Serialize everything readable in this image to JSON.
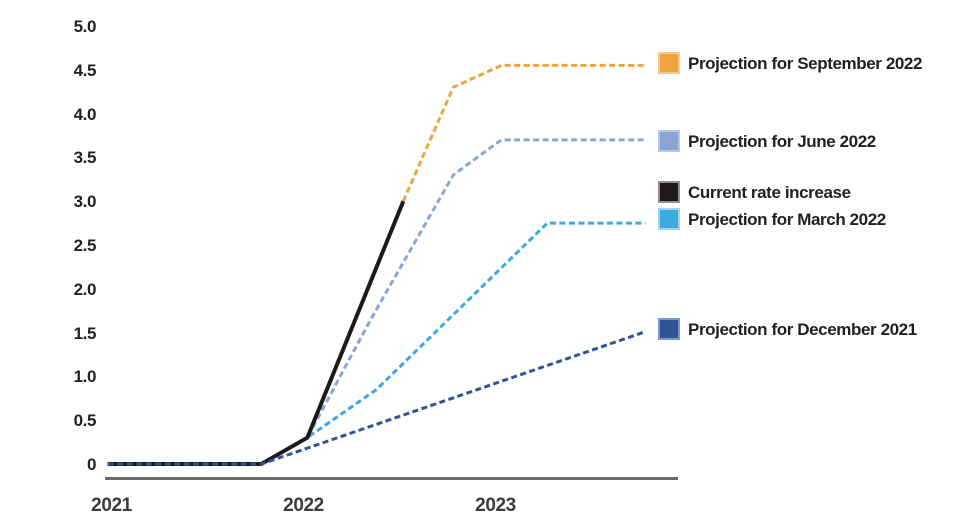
{
  "chart_data": {
    "type": "line",
    "title": "",
    "xlabel": "",
    "ylabel": "",
    "grid": false,
    "legend_position": "right",
    "background_color": "#FFFFFF",
    "axis_color": "#6B6B6B",
    "text_color": "#231F20",
    "x_axis": {
      "range": [
        2020.95,
        2023.95
      ],
      "ticks": [
        {
          "value": 2021,
          "label": "2021"
        },
        {
          "value": 2022,
          "label": "2022"
        },
        {
          "value": 2023,
          "label": "2023"
        }
      ]
    },
    "y_axis": {
      "range": [
        0,
        5.0
      ],
      "ticks": [
        {
          "value": 5.0,
          "label": "5.0"
        },
        {
          "value": 4.5,
          "label": "4.5"
        },
        {
          "value": 4.0,
          "label": "4.0"
        },
        {
          "value": 3.5,
          "label": "3.5"
        },
        {
          "value": 3.0,
          "label": "3.0"
        },
        {
          "value": 2.5,
          "label": "2.5"
        },
        {
          "value": 2.0,
          "label": "2.0"
        },
        {
          "value": 1.5,
          "label": "1.5"
        },
        {
          "value": 1.0,
          "label": "1.0"
        },
        {
          "value": 0.5,
          "label": "0.5"
        },
        {
          "value": 0,
          "label": "0"
        }
      ]
    },
    "series": [
      {
        "id": "september",
        "name": "Projection for September 2022",
        "color": "#F2A43C",
        "swatch_border": "#F7CB8F",
        "style": "dashed",
        "points": [
          [
            2022.52,
            3.0
          ],
          [
            2022.78,
            4.3
          ],
          [
            2023.03,
            4.55
          ],
          [
            2023.78,
            4.55
          ]
        ]
      },
      {
        "id": "june",
        "name": "Projection for June 2022",
        "color": "#8CA5D7",
        "swatch_border": "#B7C6E8",
        "style": "dashed",
        "points": [
          [
            2020.98,
            0
          ],
          [
            2021.78,
            0
          ],
          [
            2022.02,
            0.3
          ],
          [
            2022.35,
            1.65
          ],
          [
            2022.78,
            3.3
          ],
          [
            2023.03,
            3.7
          ],
          [
            2023.78,
            3.7
          ]
        ]
      },
      {
        "id": "current",
        "name": "Current rate increase",
        "color": "#1E1A1B",
        "swatch_border": "#8F8F8F",
        "style": "solid",
        "points": [
          [
            2020.98,
            0
          ],
          [
            2021.78,
            0
          ],
          [
            2022.02,
            0.3
          ],
          [
            2022.52,
            3.0
          ]
        ]
      },
      {
        "id": "march",
        "name": "Projection for March 2022",
        "color": "#3EAADC",
        "swatch_border": "#A1D4EE",
        "style": "dashed",
        "points": [
          [
            2020.98,
            0
          ],
          [
            2021.78,
            0
          ],
          [
            2022.02,
            0.3
          ],
          [
            2022.38,
            0.85
          ],
          [
            2023.27,
            2.75
          ],
          [
            2023.78,
            2.75
          ]
        ]
      },
      {
        "id": "december",
        "name": "Projection for December 2021",
        "color": "#2F5597",
        "swatch_border": "#7C97C9",
        "style": "dashed",
        "points": [
          [
            2020.98,
            0
          ],
          [
            2021.78,
            0
          ],
          [
            2023.78,
            1.51
          ]
        ]
      }
    ]
  }
}
